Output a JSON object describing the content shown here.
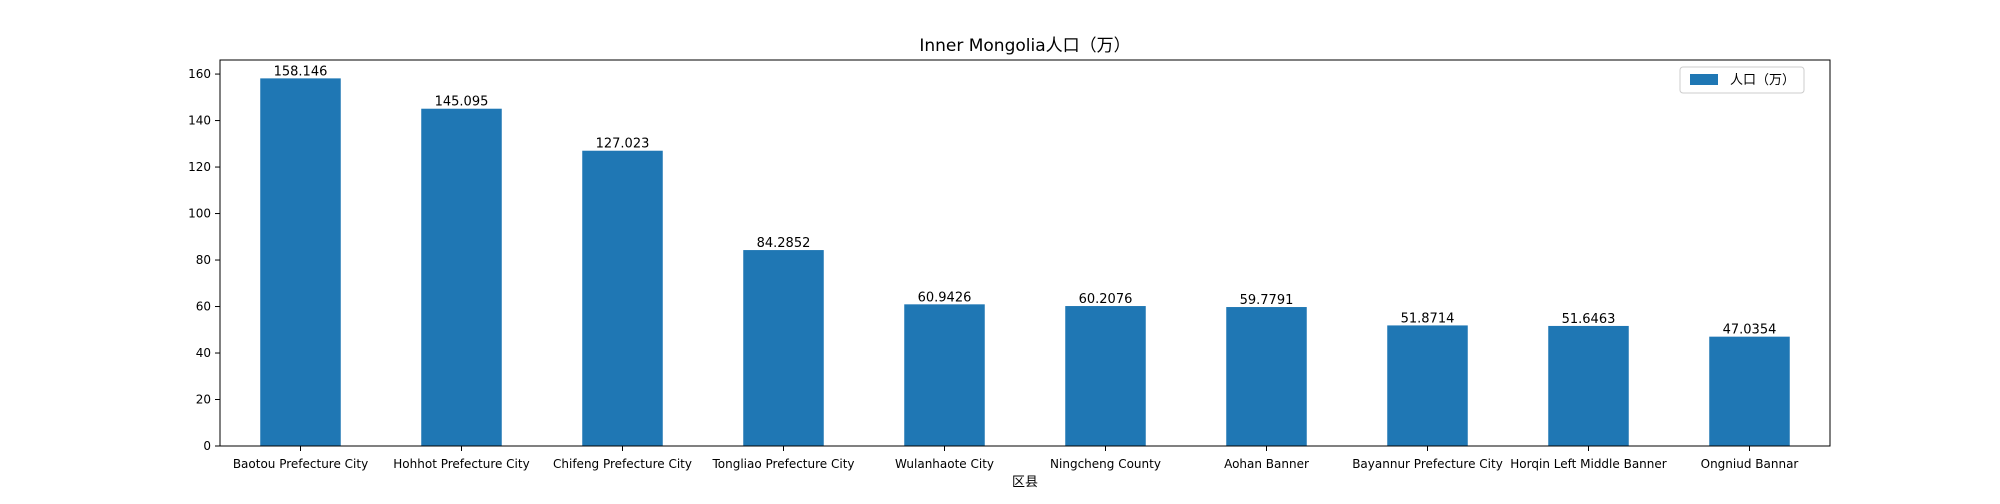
{
  "chart_data": {
    "type": "bar",
    "title": "Inner Mongolia人口（万）",
    "xlabel": "区县",
    "ylabel": "",
    "categories": [
      "Baotou Prefecture City",
      "Hohhot Prefecture City",
      "Chifeng Prefecture City",
      "Tongliao Prefecture City",
      "Wulanhaote City",
      "Ningcheng County",
      "Aohan Banner",
      "Bayannur Prefecture City",
      "Horqin Left Middle Banner",
      "Ongniud Bannar"
    ],
    "series": [
      {
        "name": "人口（万）",
        "values": [
          158.146,
          145.095,
          127.023,
          84.2852,
          60.9426,
          60.2076,
          59.7791,
          51.8714,
          51.6463,
          47.0354
        ],
        "value_labels": [
          "158.146",
          "145.095",
          "127.023",
          "84.2852",
          "60.9426",
          "60.2076",
          "59.7791",
          "51.8714",
          "51.6463",
          "47.0354"
        ],
        "color": "#1f77b4"
      }
    ],
    "ylim": [
      0,
      166.05
    ],
    "yticks": [
      0,
      20,
      40,
      60,
      80,
      100,
      120,
      140,
      160
    ],
    "grid": false,
    "legend_position": "top-right"
  }
}
